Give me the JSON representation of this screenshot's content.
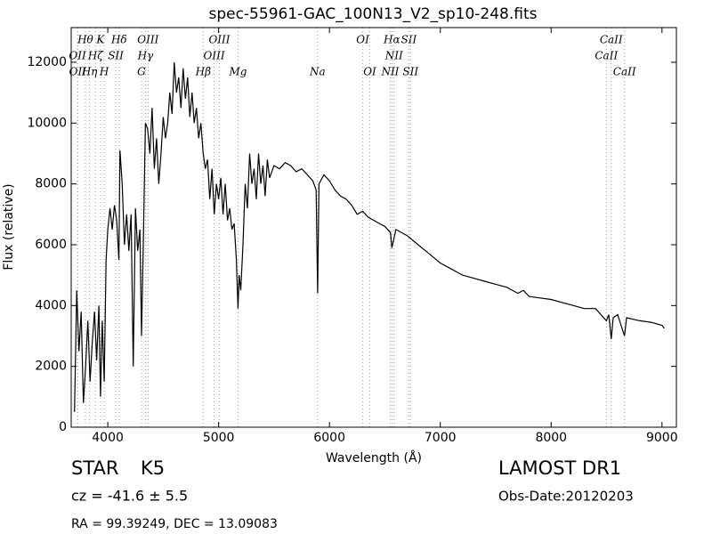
{
  "chart_data": {
    "type": "line",
    "title": "spec-55961-GAC_100N13_V2_sp10-248.fits",
    "x_label": "Wavelength (Å)",
    "y_label": "Flux (relative)",
    "color": "#000000",
    "line_color": "#66cc66",
    "xlim": [
      3670,
      9130
    ],
    "ylim": [
      0,
      13140
    ],
    "xticks": [
      4000,
      5000,
      6000,
      7000,
      8000,
      9000
    ],
    "yticks": [
      0,
      2000,
      4000,
      6000,
      8000,
      10000,
      12000
    ],
    "x": [
      3700,
      3720,
      3740,
      3760,
      3780,
      3800,
      3820,
      3840,
      3860,
      3880,
      3900,
      3920,
      3934,
      3950,
      3968,
      3985,
      4000,
      4020,
      4040,
      4060,
      4080,
      4100,
      4110,
      4130,
      4150,
      4170,
      4190,
      4210,
      4230,
      4250,
      4270,
      4290,
      4304,
      4320,
      4340,
      4360,
      4380,
      4400,
      4420,
      4440,
      4460,
      4480,
      4500,
      4520,
      4540,
      4560,
      4580,
      4600,
      4620,
      4640,
      4660,
      4680,
      4700,
      4720,
      4740,
      4760,
      4780,
      4800,
      4820,
      4840,
      4861,
      4880,
      4900,
      4920,
      4940,
      4960,
      4980,
      5000,
      5020,
      5040,
      5060,
      5080,
      5100,
      5120,
      5140,
      5160,
      5175,
      5185,
      5200,
      5220,
      5240,
      5260,
      5280,
      5300,
      5320,
      5340,
      5360,
      5380,
      5400,
      5420,
      5440,
      5460,
      5500,
      5550,
      5600,
      5650,
      5700,
      5750,
      5800,
      5850,
      5880,
      5893,
      5905,
      5950,
      6000,
      6050,
      6100,
      6150,
      6200,
      6250,
      6300,
      6350,
      6400,
      6450,
      6500,
      6550,
      6563,
      6600,
      6700,
      6800,
      6900,
      7000,
      7100,
      7200,
      7300,
      7400,
      7500,
      7600,
      7700,
      7750,
      7800,
      7900,
      8000,
      8100,
      8200,
      8300,
      8400,
      8498,
      8520,
      8542,
      8560,
      8600,
      8662,
      8680,
      8800,
      8900,
      9000,
      9020
    ],
    "values": [
      500,
      4500,
      2500,
      3800,
      800,
      2000,
      3500,
      1500,
      2800,
      3800,
      2200,
      4000,
      1000,
      3500,
      1500,
      5500,
      6500,
      7200,
      6500,
      7300,
      6800,
      5500,
      9100,
      8000,
      6000,
      7000,
      5800,
      7000,
      2000,
      7200,
      5800,
      6500,
      3000,
      6000,
      10000,
      9800,
      9000,
      10500,
      8500,
      9500,
      8000,
      9000,
      10200,
      9500,
      10000,
      11000,
      10300,
      12000,
      11000,
      11500,
      10500,
      11800,
      10800,
      11500,
      10200,
      11000,
      10000,
      10500,
      9500,
      10000,
      9000,
      8500,
      8800,
      7500,
      8500,
      7000,
      8000,
      7500,
      8200,
      7000,
      8000,
      6800,
      7200,
      6500,
      6700,
      5500,
      3900,
      5000,
      4500,
      6000,
      8000,
      7200,
      9000,
      8000,
      8500,
      7500,
      9000,
      8000,
      8600,
      7600,
      8800,
      8200,
      8600,
      8500,
      8700,
      8600,
      8400,
      8500,
      8300,
      8100,
      7800,
      4400,
      8000,
      8300,
      8100,
      7800,
      7600,
      7500,
      7300,
      7000,
      7100,
      6900,
      6800,
      6700,
      6600,
      6400,
      5900,
      6500,
      6300,
      6000,
      5700,
      5400,
      5200,
      5000,
      4900,
      4800,
      4700,
      4600,
      4400,
      4500,
      4300,
      4250,
      4200,
      4100,
      4000,
      3900,
      3900,
      3500,
      3700,
      2900,
      3600,
      3700,
      3000,
      3600,
      3500,
      3450,
      3350,
      3250
    ],
    "lines": [
      {
        "label": "Hθ",
        "wavelength": 3798
      },
      {
        "label": "K",
        "wavelength": 3934
      },
      {
        "label": "Hδ",
        "wavelength": 4102
      },
      {
        "label": "OIII",
        "wavelength": 4363
      },
      {
        "label": "OIII",
        "wavelength": 5007
      },
      {
        "label": "OI",
        "wavelength": 6300
      },
      {
        "label": "Hα",
        "wavelength": 6563
      },
      {
        "label": "SII",
        "wavelength": 6716
      },
      {
        "label": "CaII",
        "wavelength": 8542
      },
      {
        "label": "OII",
        "wavelength": 3727
      },
      {
        "label": "Hζ",
        "wavelength": 3889
      },
      {
        "label": "SII",
        "wavelength": 4072
      },
      {
        "label": "Hγ",
        "wavelength": 4340
      },
      {
        "label": "OIII",
        "wavelength": 4959
      },
      {
        "label": "NII",
        "wavelength": 6583
      },
      {
        "label": "CaII",
        "wavelength": 8498
      },
      {
        "label": "OII",
        "wavelength": 3729
      },
      {
        "label": "Hη",
        "wavelength": 3835
      },
      {
        "label": "H",
        "wavelength": 3968
      },
      {
        "label": "G",
        "wavelength": 4304
      },
      {
        "label": "Hβ",
        "wavelength": 4861
      },
      {
        "label": "Mg",
        "wavelength": 5175
      },
      {
        "label": "Na",
        "wavelength": 5893
      },
      {
        "label": "OI",
        "wavelength": 6364
      },
      {
        "label": "NII",
        "wavelength": 6548
      },
      {
        "label": "SII",
        "wavelength": 6731
      },
      {
        "label": "CaII",
        "wavelength": 8662
      }
    ]
  },
  "info": {
    "object": "STAR",
    "subclass": "K5",
    "cz": "cz = -41.6 ± 5.5",
    "coords": "RA = 99.39249, DEC = 13.09083",
    "survey": "LAMOST DR1",
    "obs_date": "Obs-Date:20120203"
  }
}
